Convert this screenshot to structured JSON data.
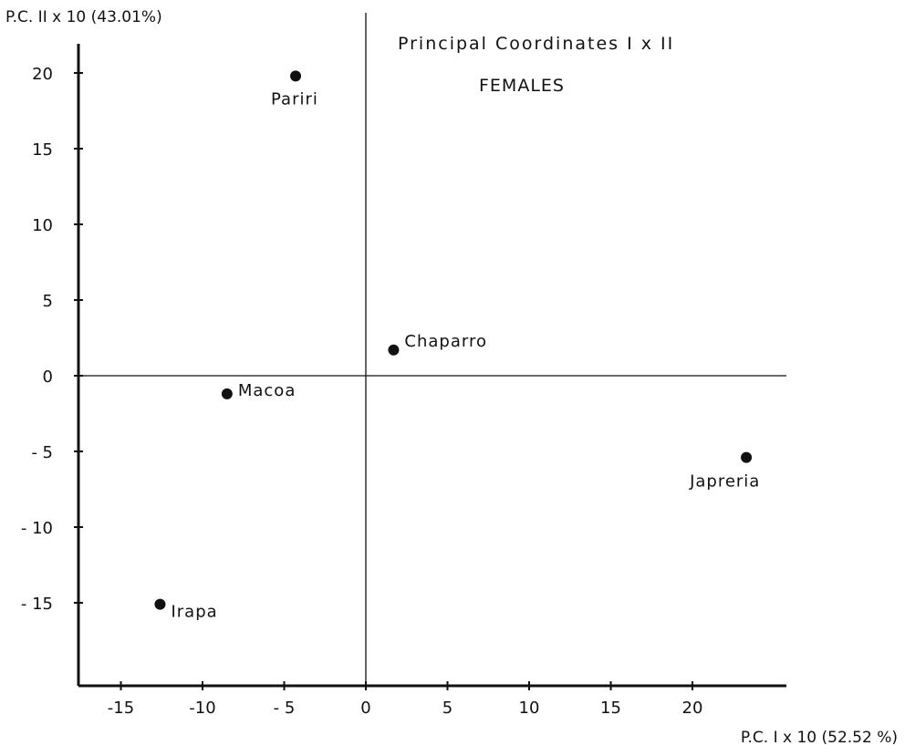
{
  "chart_data": {
    "type": "scatter",
    "title": "Principal Coordinates I x II",
    "subtitle": "FEMALES",
    "xlabel": "P.C. I x 10 (52.52 %)",
    "ylabel": "P.C. II x 10 (43.01%)",
    "xlim": [
      -17.5,
      26
    ],
    "ylim": [
      -20.5,
      23.5
    ],
    "xticks": [
      -15,
      -10,
      -5,
      0,
      5,
      10,
      15,
      20
    ],
    "yticks": [
      20,
      15,
      10,
      5,
      0,
      -5,
      -10,
      -15
    ],
    "xtick_labels": [
      "-15",
      "-10",
      "- 5",
      "0",
      "5",
      "10",
      "15",
      "20"
    ],
    "ytick_labels": [
      "20",
      "15",
      "10",
      "5",
      "0",
      "- 5",
      "- 10",
      "- 15"
    ],
    "grid": false,
    "points": [
      {
        "label": "Pariri",
        "x": -4.3,
        "y": 19.8
      },
      {
        "label": "Chaparro",
        "x": 1.7,
        "y": 1.7
      },
      {
        "label": "Macoa",
        "x": -8.5,
        "y": -1.2
      },
      {
        "label": "Japreria",
        "x": 23.3,
        "y": -5.4
      },
      {
        "label": "Irapa",
        "x": -12.6,
        "y": -15.1
      }
    ]
  }
}
